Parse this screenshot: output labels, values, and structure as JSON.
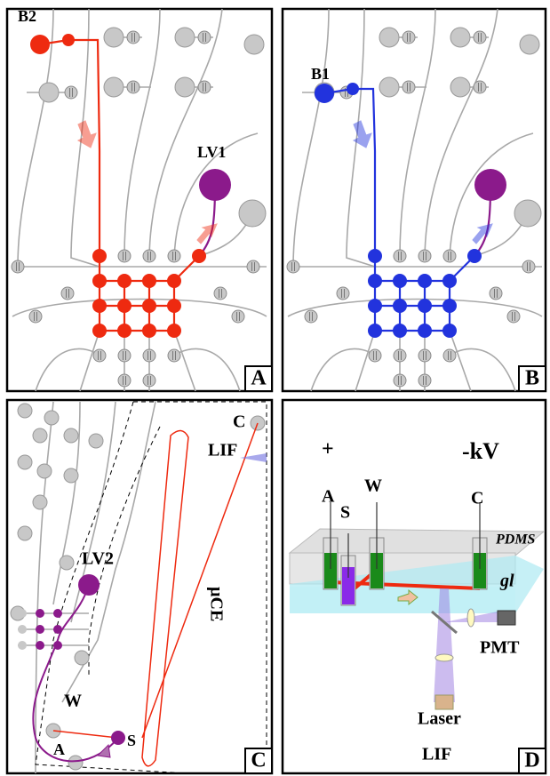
{
  "panels": [
    {
      "label": "A",
      "annotations": [
        "B2",
        "LV1"
      ]
    },
    {
      "label": "B",
      "annotations": [
        "B1"
      ]
    },
    {
      "label": "C",
      "annotations": [
        "C",
        "LIF",
        "LV2",
        "µCE",
        "W",
        "A",
        "S"
      ]
    },
    {
      "label": "D",
      "annotations": [
        "+",
        "-kV",
        "A",
        "S",
        "W",
        "C",
        "PDMS",
        "gl",
        "PMT",
        "Laser",
        "LIF"
      ]
    }
  ]
}
